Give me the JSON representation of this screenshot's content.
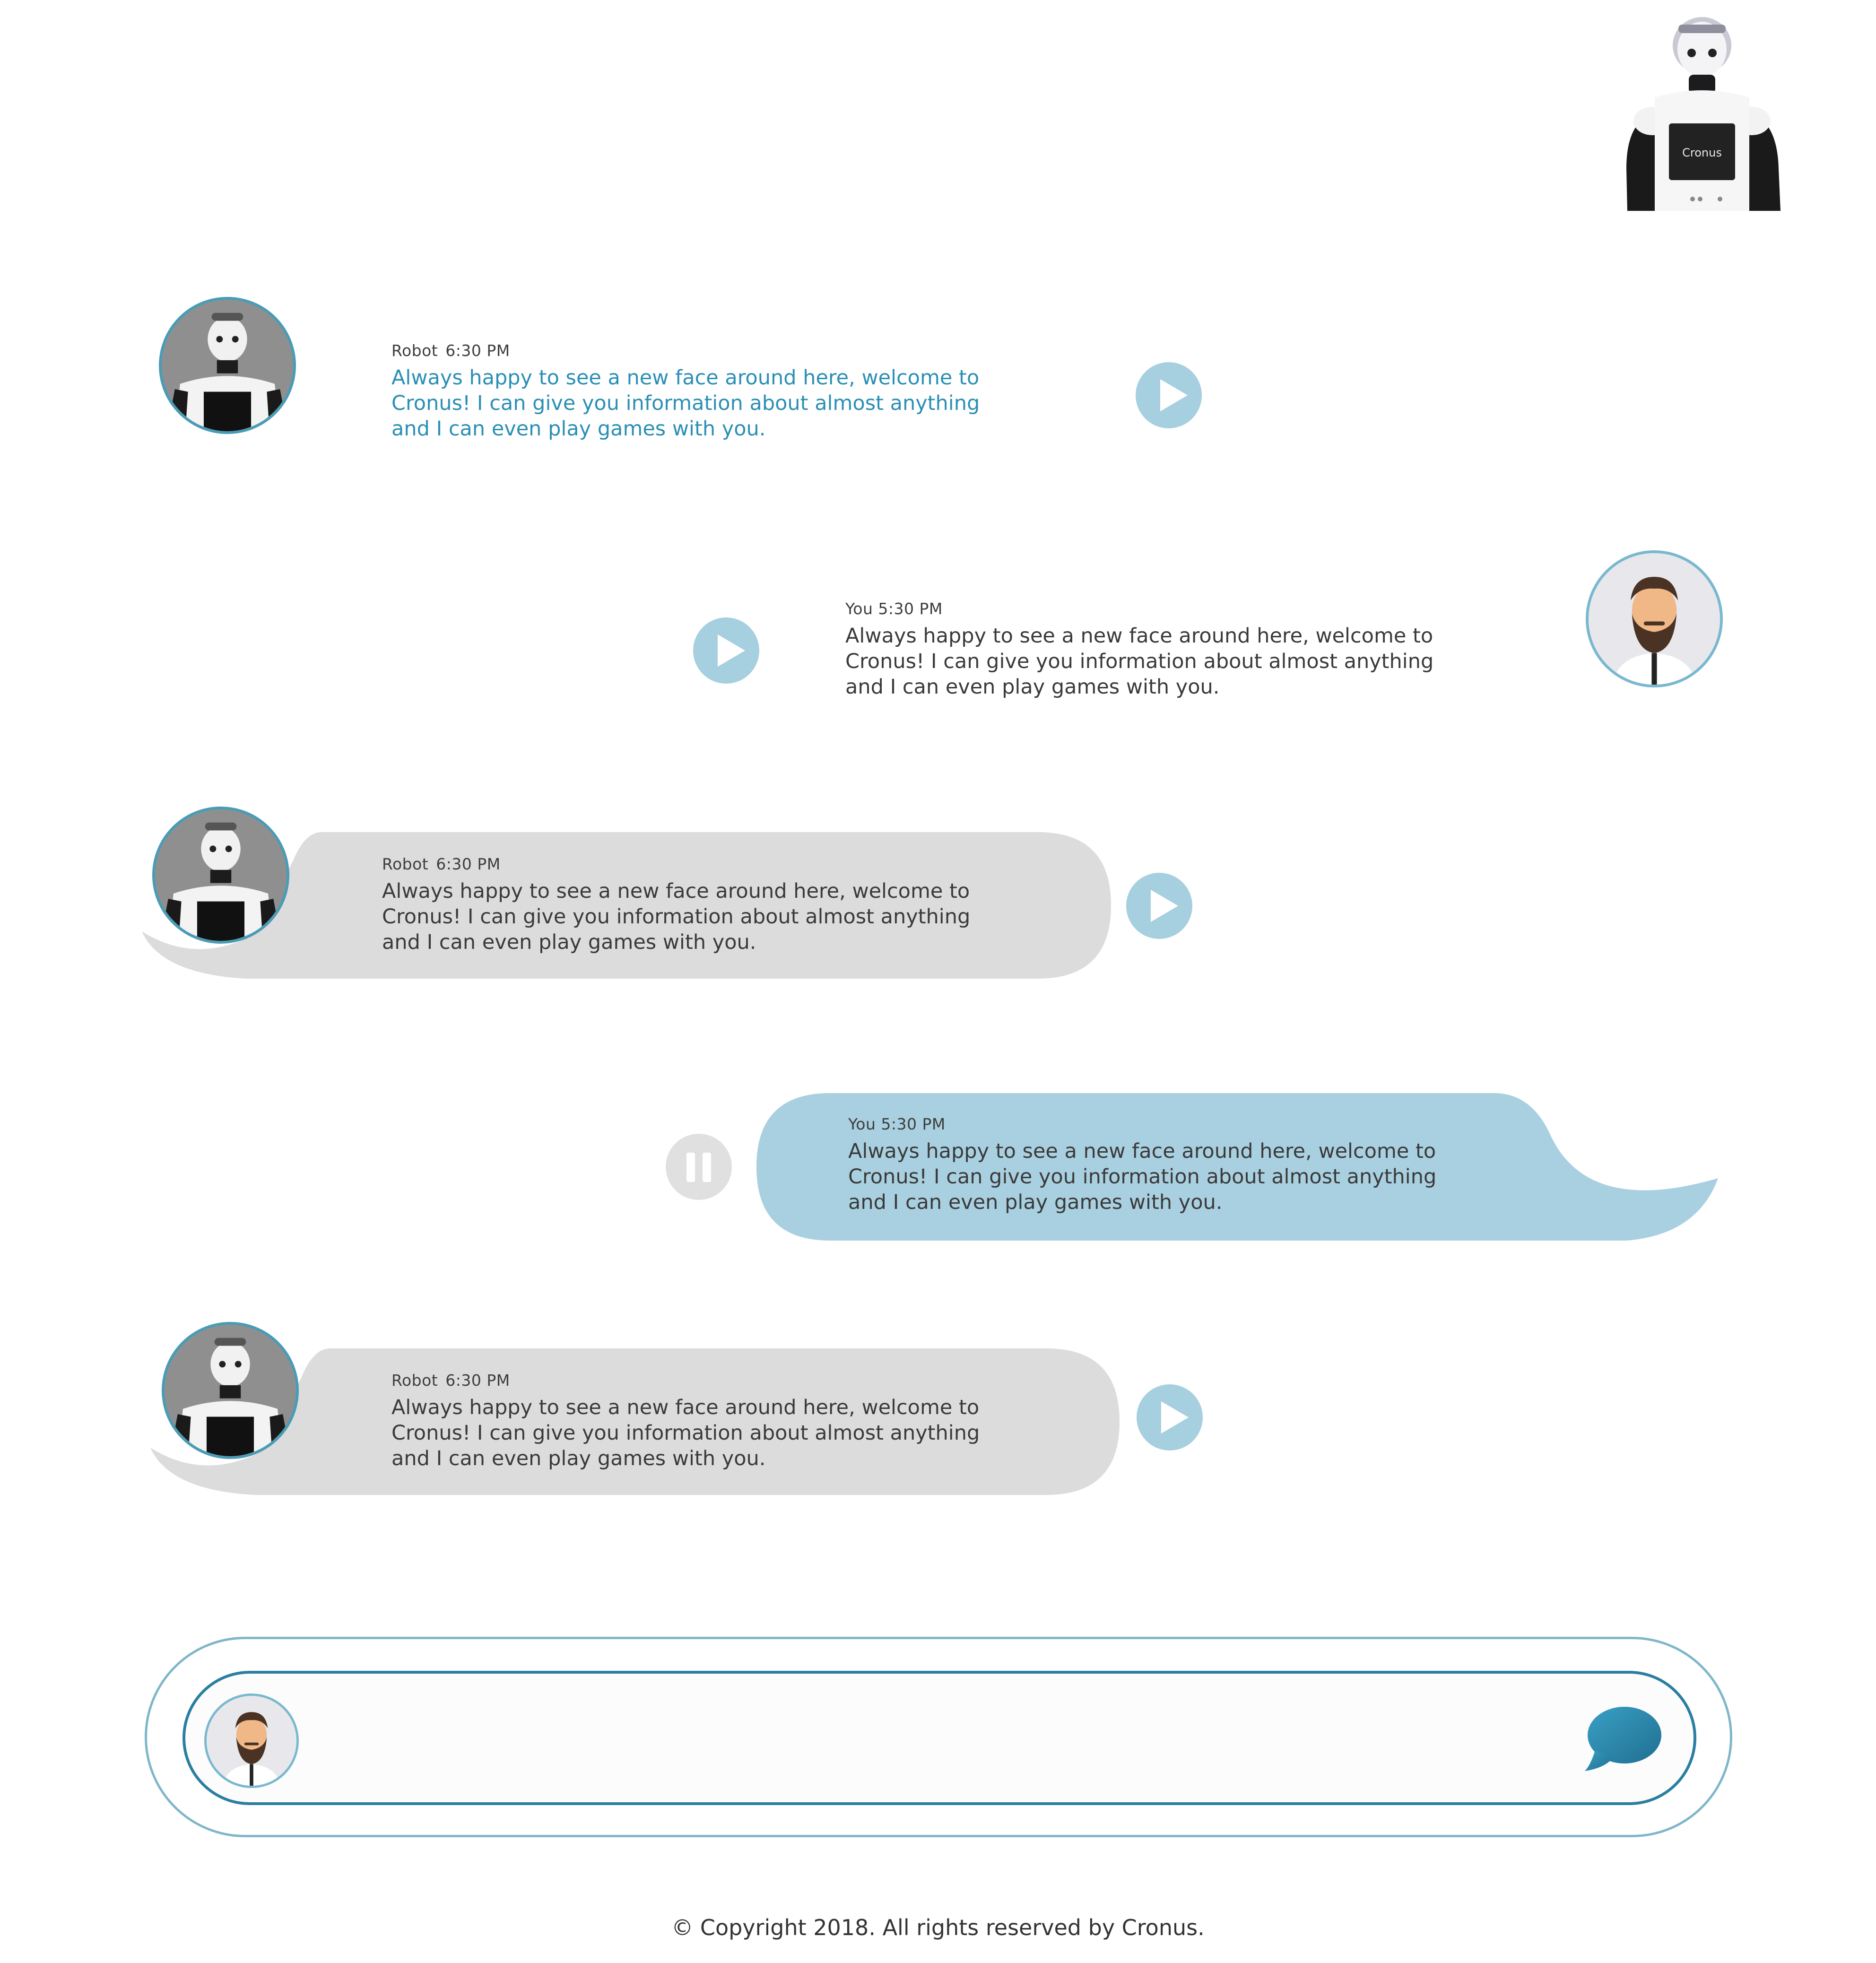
{
  "brand": {
    "name": "Cronus",
    "icon": "robot-cronus-icon"
  },
  "colors": {
    "accent": "#2a8fb4",
    "play_button": "#a6cfe0",
    "pause_button": "#e0e0e0",
    "robot_bubble": "#dcdcdc",
    "user_bubble": "#a9d0e0",
    "composer_border": "#2a7fa0"
  },
  "messages": [
    {
      "sender": "Robot",
      "time": "6:30 PM",
      "text": "Always happy to see a new face around here, welcome to Cronus! I can give you information about almost anything and I can even play games with you.",
      "style": "plain-accent",
      "control": "play"
    },
    {
      "sender": "You",
      "time": "5:30 PM",
      "text": "Always happy to see a new face around here, welcome to Cronus! I can give you information about almost anything and I can even play games with you.",
      "style": "plain",
      "control": "play"
    },
    {
      "sender": "Robot",
      "time": "6:30 PM",
      "text": "Always happy to see a new face around here, welcome to Cronus! I can give you information about almost anything and I can even play games with you.",
      "style": "bubble-gray",
      "control": "play"
    },
    {
      "sender": "You",
      "time": "5:30 PM",
      "text": "Always happy to see a new face around here, welcome to Cronus! I can give you information about almost anything and I can even play games with you.",
      "style": "bubble-blue",
      "control": "pause"
    },
    {
      "sender": "Robot",
      "time": "6:30 PM",
      "text": "Always happy to see a new face around here, welcome to Cronus! I can give you information about almost anything and I can even play games with you.",
      "style": "bubble-gray",
      "control": "play"
    }
  ],
  "composer": {
    "placeholder": "",
    "value": "",
    "send_icon": "speech-bubble-send-icon",
    "avatar_icon": "user-avatar-icon"
  },
  "footer": {
    "text": "© Copyright 2018. All rights reserved by Cronus."
  }
}
